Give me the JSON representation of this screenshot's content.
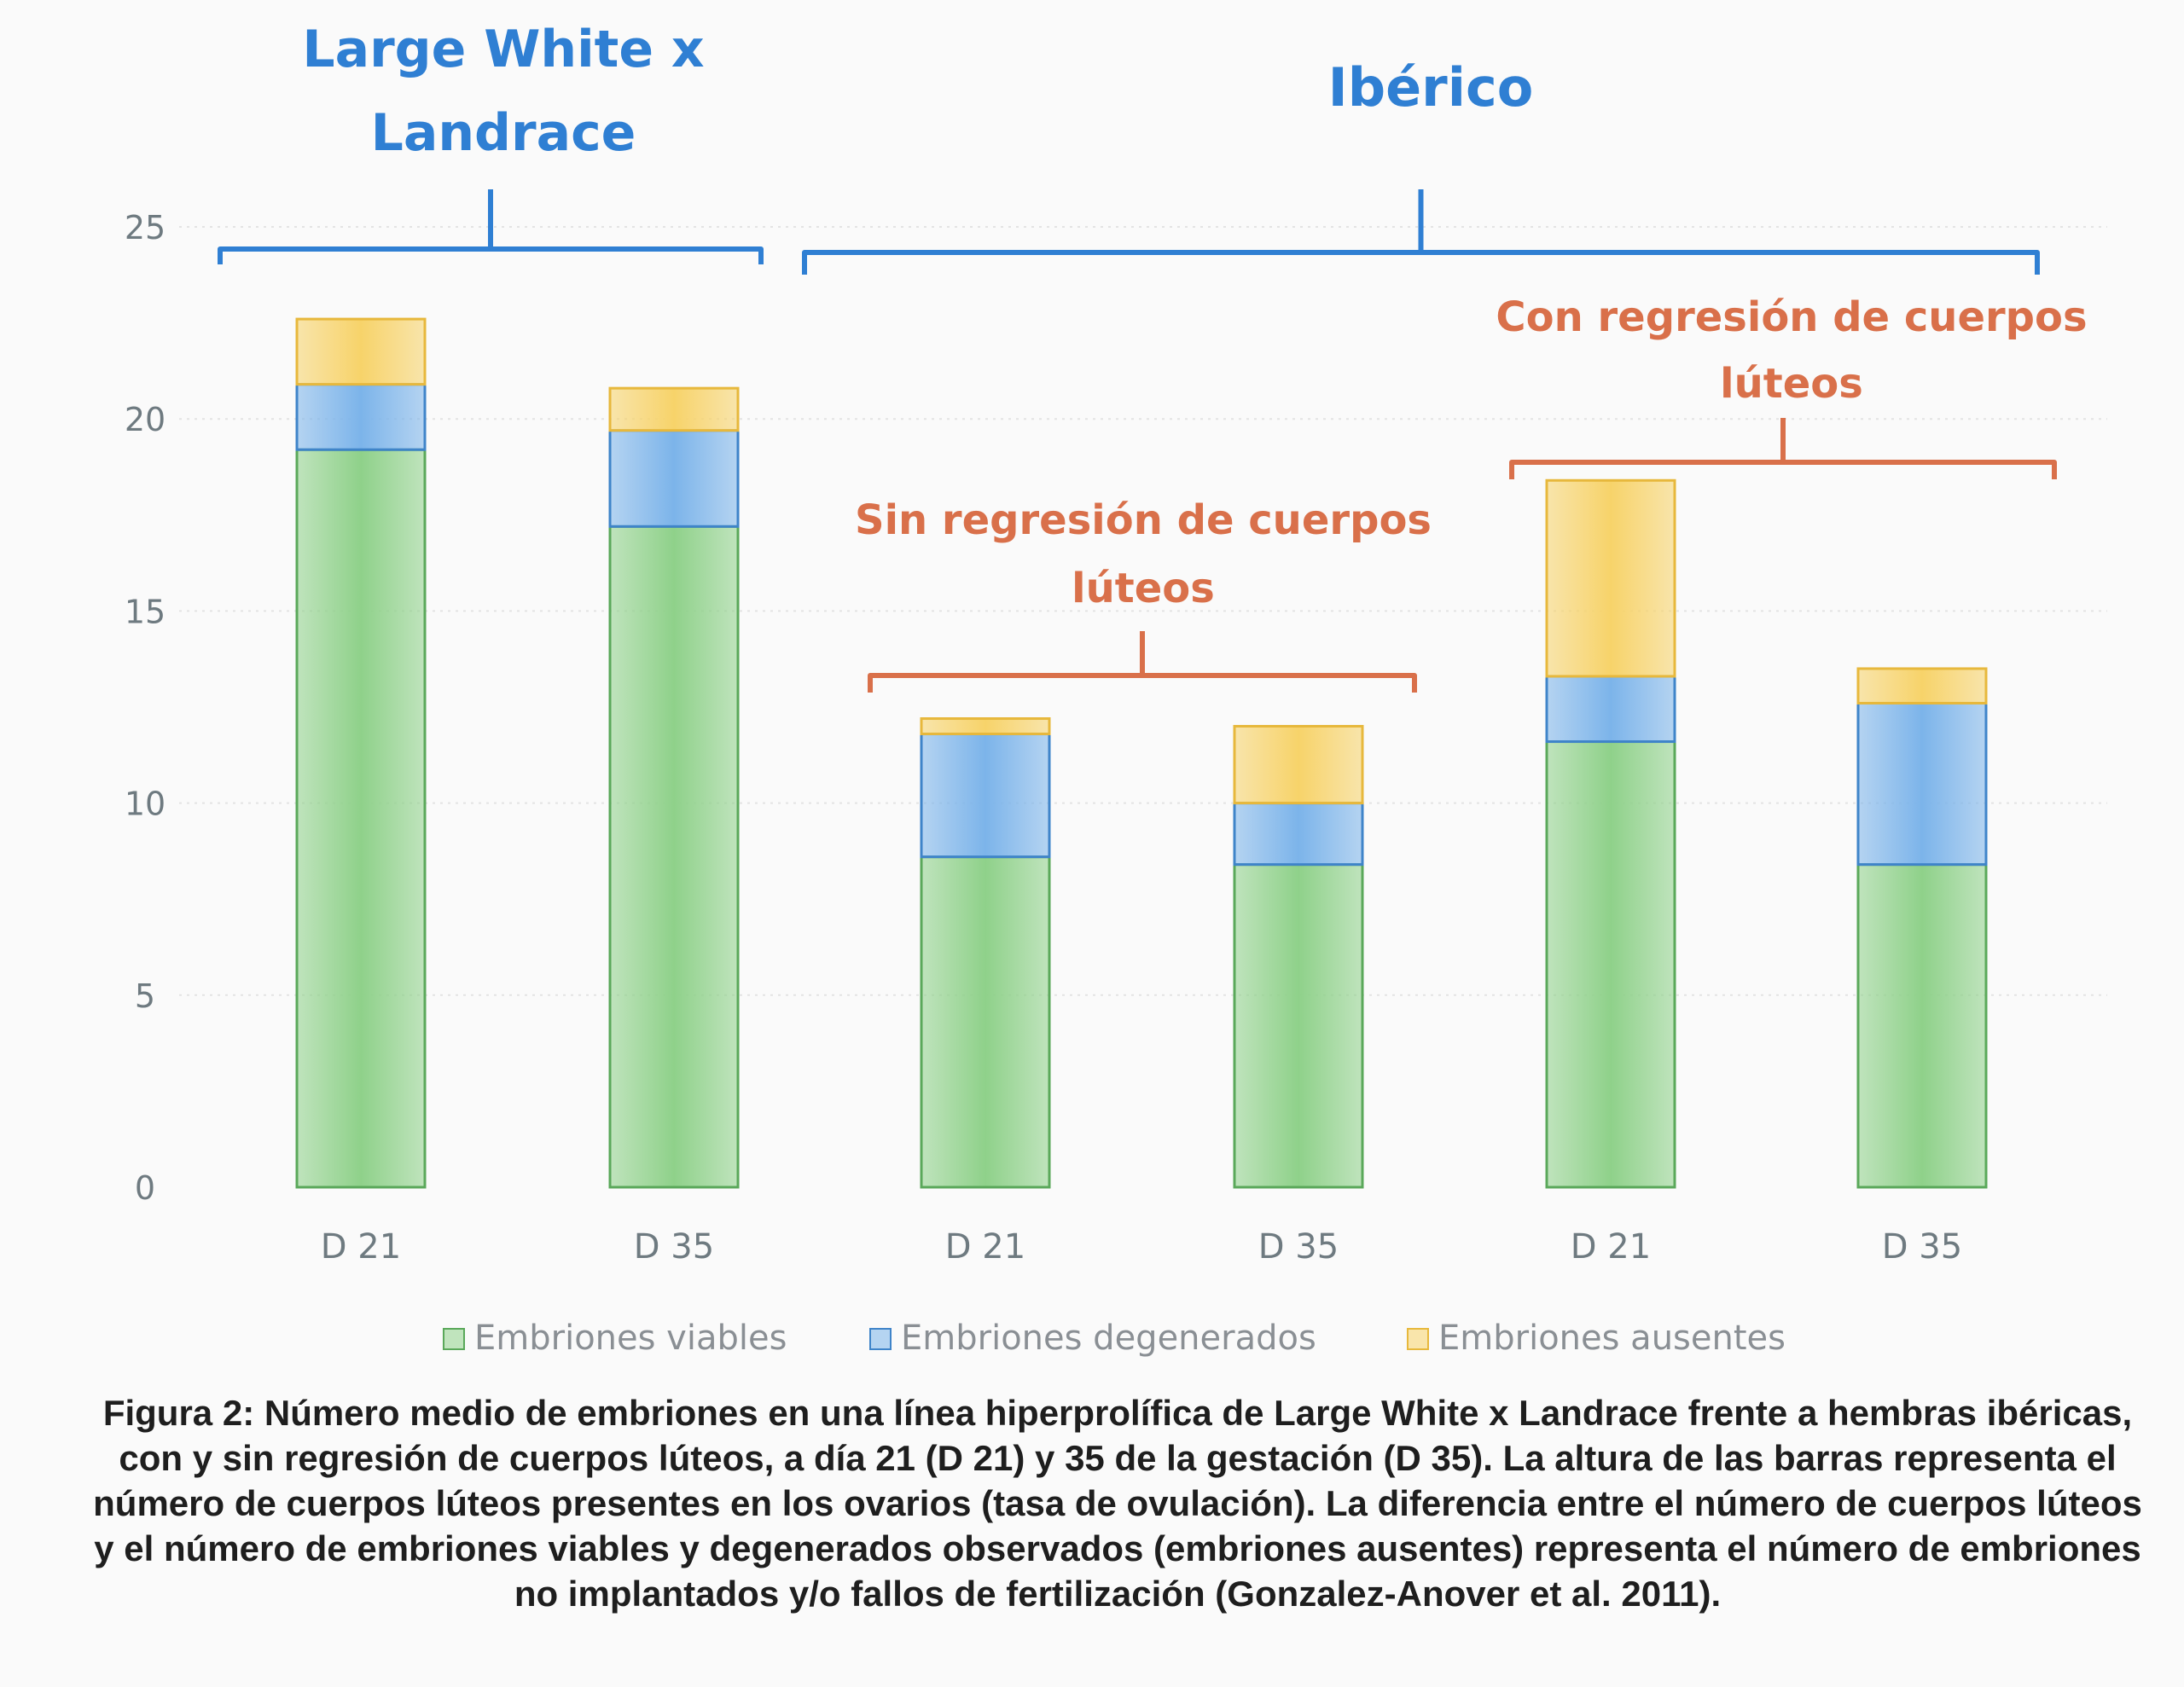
{
  "chart_data": {
    "type": "bar",
    "stacked": true,
    "ylim": [
      0,
      25
    ],
    "yticks": [
      "0",
      "5",
      "10",
      "15",
      "20",
      "25"
    ],
    "grid": "horizontal, light dashed",
    "legend_position": "bottom",
    "categories": [
      "D 21",
      "D 35",
      "D 21",
      "D 35",
      "D 21",
      "D 35"
    ],
    "series": [
      {
        "name": "Embriones viables",
        "color": "#8fd18a",
        "values": [
          19.2,
          17.2,
          8.6,
          8.4,
          11.6,
          8.4
        ]
      },
      {
        "name": "Embriones degenerados",
        "color": "#7cb4ea",
        "values": [
          1.7,
          2.5,
          3.2,
          1.6,
          1.7,
          4.2
        ]
      },
      {
        "name": "Embriones ausentes",
        "color": "#f7d36a",
        "values": [
          1.7,
          1.1,
          0.4,
          2.0,
          5.1,
          0.9
        ]
      }
    ],
    "groups": [
      {
        "label": "Large White x Landrace",
        "bars": [
          0,
          1
        ]
      },
      {
        "label": "Ibérico",
        "bars": [
          2,
          3,
          4,
          5
        ]
      }
    ],
    "subgroups": [
      {
        "label": "Sin regresión de cuerpos lúteos",
        "bars": [
          2,
          3
        ]
      },
      {
        "label": "Con regresión de cuerpos lúteos",
        "bars": [
          4,
          5
        ]
      }
    ]
  },
  "caption": {
    "label": "Figura 2:",
    "text": "Número medio de embriones en una línea hiperprolífica de Large White x Landrace frente a hembras ibéricas, con y sin regresión de cuerpos lúteos, a día 21 (D 21) y 35 de la gestación (D 35). La altura de las barras representa el número de cuerpos lúteos presentes en los ovarios (tasa de ovulación). La diferencia entre el número de cuerpos lúteos y el número de embriones viables y degenerados observados (embriones ausentes) representa el número de embriones no implantados y/o fallos de fertilización (Gonzalez-Anover et al. 2011)."
  }
}
